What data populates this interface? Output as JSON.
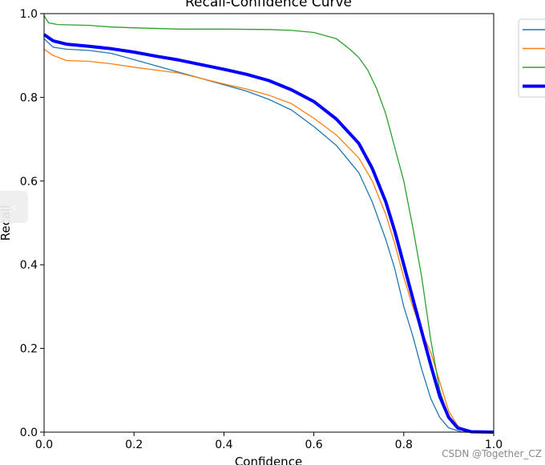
{
  "chart_data": {
    "type": "line",
    "title": "Recall-Confidence Curve",
    "xlabel": "Confidence",
    "ylabel": "Recall",
    "xlim": [
      0,
      1
    ],
    "ylim": [
      0,
      1
    ],
    "xticks": [
      "0.0",
      "0.2",
      "0.4",
      "0.6",
      "0.8",
      "1.0"
    ],
    "yticks": [
      "0.0",
      "0.2",
      "0.4",
      "0.6",
      "0.8",
      "1.0"
    ],
    "grid": false,
    "legend_position": "outside-top-right",
    "series": [
      {
        "color": "#1f77b4",
        "width": "thin",
        "points": [
          [
            0,
            0.94
          ],
          [
            0.02,
            0.92
          ],
          [
            0.05,
            0.915
          ],
          [
            0.1,
            0.912
          ],
          [
            0.15,
            0.905
          ],
          [
            0.2,
            0.89
          ],
          [
            0.25,
            0.875
          ],
          [
            0.3,
            0.86
          ],
          [
            0.35,
            0.845
          ],
          [
            0.4,
            0.83
          ],
          [
            0.45,
            0.815
          ],
          [
            0.5,
            0.795
          ],
          [
            0.55,
            0.77
          ],
          [
            0.6,
            0.73
          ],
          [
            0.65,
            0.685
          ],
          [
            0.7,
            0.62
          ],
          [
            0.73,
            0.55
          ],
          [
            0.76,
            0.46
          ],
          [
            0.78,
            0.39
          ],
          [
            0.8,
            0.3
          ],
          [
            0.82,
            0.23
          ],
          [
            0.84,
            0.15
          ],
          [
            0.86,
            0.08
          ],
          [
            0.88,
            0.035
          ],
          [
            0.9,
            0.01
          ],
          [
            0.93,
            0.0
          ],
          [
            1.0,
            0.0
          ]
        ]
      },
      {
        "color": "#ff7f0e",
        "width": "thin",
        "points": [
          [
            0,
            0.915
          ],
          [
            0.02,
            0.9
          ],
          [
            0.05,
            0.888
          ],
          [
            0.1,
            0.886
          ],
          [
            0.15,
            0.88
          ],
          [
            0.2,
            0.872
          ],
          [
            0.25,
            0.865
          ],
          [
            0.3,
            0.858
          ],
          [
            0.35,
            0.845
          ],
          [
            0.4,
            0.832
          ],
          [
            0.45,
            0.82
          ],
          [
            0.5,
            0.805
          ],
          [
            0.55,
            0.785
          ],
          [
            0.6,
            0.75
          ],
          [
            0.65,
            0.71
          ],
          [
            0.7,
            0.655
          ],
          [
            0.73,
            0.6
          ],
          [
            0.76,
            0.52
          ],
          [
            0.78,
            0.45
          ],
          [
            0.8,
            0.37
          ],
          [
            0.82,
            0.3
          ],
          [
            0.84,
            0.24
          ],
          [
            0.86,
            0.19
          ],
          [
            0.88,
            0.12
          ],
          [
            0.9,
            0.05
          ],
          [
            0.92,
            0.015
          ],
          [
            0.94,
            0.0
          ],
          [
            1.0,
            0.0
          ]
        ]
      },
      {
        "color": "#2ca02c",
        "width": "thin",
        "points": [
          [
            0,
            0.995
          ],
          [
            0.01,
            0.978
          ],
          [
            0.03,
            0.974
          ],
          [
            0.1,
            0.972
          ],
          [
            0.15,
            0.968
          ],
          [
            0.2,
            0.966
          ],
          [
            0.3,
            0.963
          ],
          [
            0.4,
            0.963
          ],
          [
            0.5,
            0.962
          ],
          [
            0.55,
            0.96
          ],
          [
            0.6,
            0.955
          ],
          [
            0.65,
            0.94
          ],
          [
            0.68,
            0.915
          ],
          [
            0.7,
            0.895
          ],
          [
            0.72,
            0.865
          ],
          [
            0.74,
            0.82
          ],
          [
            0.76,
            0.76
          ],
          [
            0.78,
            0.68
          ],
          [
            0.8,
            0.6
          ],
          [
            0.82,
            0.49
          ],
          [
            0.84,
            0.37
          ],
          [
            0.86,
            0.22
          ],
          [
            0.88,
            0.1
          ],
          [
            0.9,
            0.035
          ],
          [
            0.92,
            0.008
          ],
          [
            0.94,
            0.0
          ],
          [
            1.0,
            0.0
          ]
        ]
      },
      {
        "color": "#0000ff",
        "width": "thick",
        "points": [
          [
            0,
            0.95
          ],
          [
            0.02,
            0.935
          ],
          [
            0.05,
            0.927
          ],
          [
            0.1,
            0.922
          ],
          [
            0.15,
            0.916
          ],
          [
            0.2,
            0.908
          ],
          [
            0.25,
            0.898
          ],
          [
            0.3,
            0.889
          ],
          [
            0.35,
            0.878
          ],
          [
            0.4,
            0.867
          ],
          [
            0.45,
            0.855
          ],
          [
            0.5,
            0.84
          ],
          [
            0.55,
            0.818
          ],
          [
            0.6,
            0.79
          ],
          [
            0.65,
            0.748
          ],
          [
            0.7,
            0.69
          ],
          [
            0.73,
            0.63
          ],
          [
            0.76,
            0.55
          ],
          [
            0.78,
            0.48
          ],
          [
            0.8,
            0.4
          ],
          [
            0.82,
            0.32
          ],
          [
            0.84,
            0.24
          ],
          [
            0.86,
            0.16
          ],
          [
            0.88,
            0.085
          ],
          [
            0.9,
            0.035
          ],
          [
            0.92,
            0.01
          ],
          [
            0.95,
            0.001
          ],
          [
            1.0,
            0.0
          ]
        ]
      }
    ]
  },
  "watermark": "CSDN @Together_CZ",
  "side_tab_icon": "chevron-left-icon",
  "side_tab_glyph": "‹"
}
